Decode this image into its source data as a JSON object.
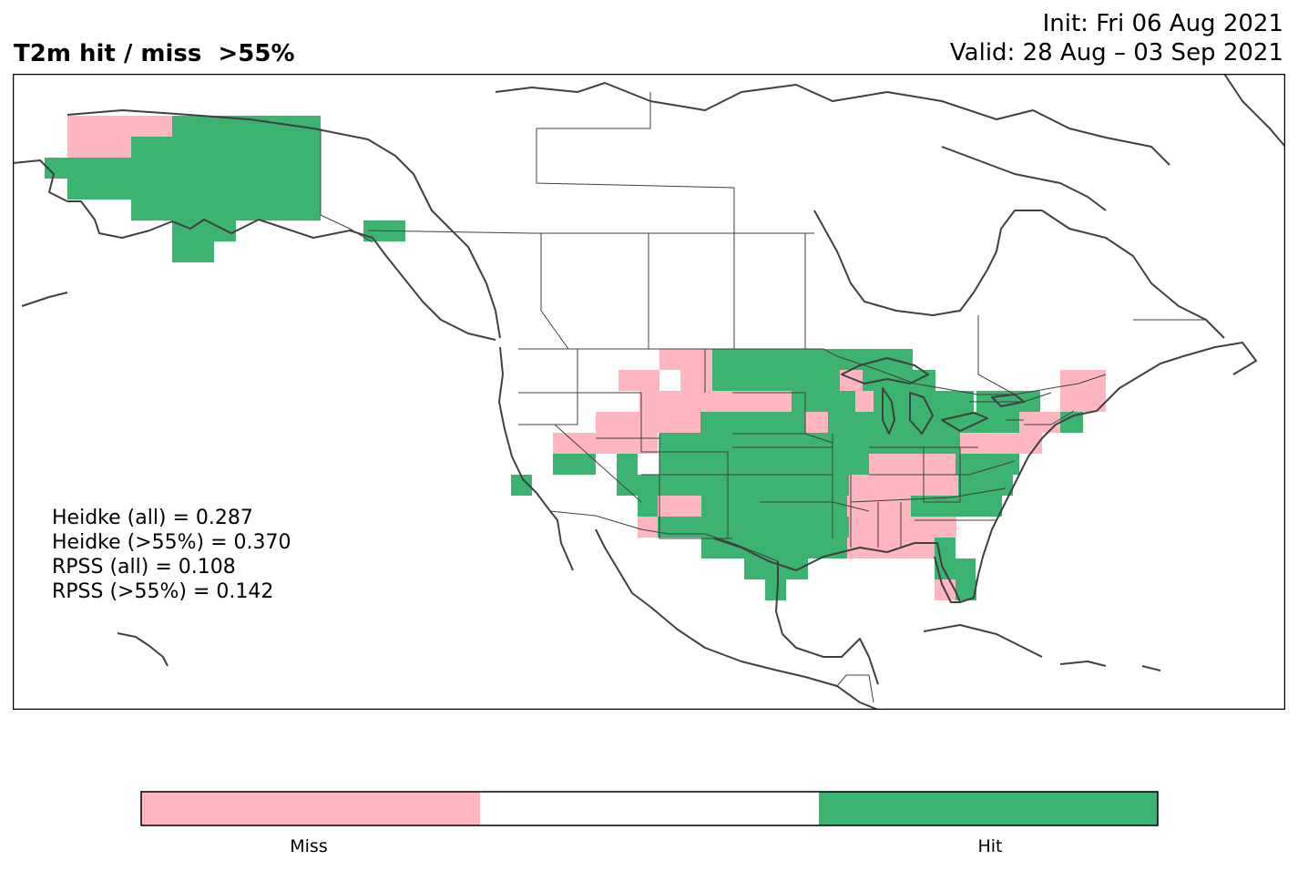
{
  "title": "T2m hit / miss  >55%",
  "init_label": "Init: Fri 06 Aug 2021",
  "valid_label": "Valid: 28 Aug – 03 Sep 2021",
  "scores": [
    "Heidke (all) = 0.287",
    "Heidke (>55%) = 0.370",
    "RPSS (all) = 0.108",
    "RPSS (>55%) = 0.142"
  ],
  "colorbar": {
    "labels": [
      "Miss",
      "Hit"
    ],
    "colors": {
      "miss": "#ffb6c1",
      "neutral": "#ffffff",
      "hit": "#3cb371"
    }
  },
  "colors": {
    "hit": "#3cb371",
    "miss": "#ffb6c1",
    "coast": "#404040"
  }
}
